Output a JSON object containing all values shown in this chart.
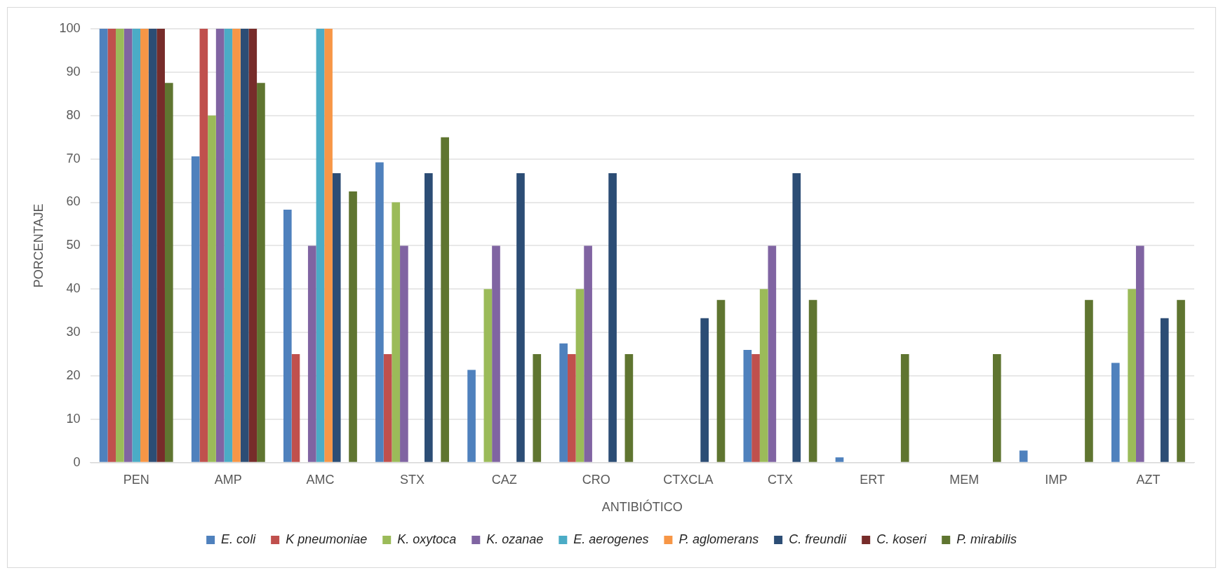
{
  "chart_data": {
    "type": "bar",
    "xlabel": "ANTIBIÓTICO",
    "ylabel": "PORCENTAJE",
    "categories": [
      "PEN",
      "AMP",
      "AMC",
      "STX",
      "CAZ",
      "CRO",
      "CTXCLA",
      "CTX",
      "ERT",
      "MEM",
      "IMP",
      "AZT"
    ],
    "series": [
      {
        "name": "E. coli",
        "color": "#4f81bd",
        "values": [
          100,
          70.6,
          58.3,
          69.2,
          21.4,
          27.5,
          null,
          26,
          1.2,
          null,
          2.8,
          23
        ]
      },
      {
        "name": "K pneumoniae",
        "color": "#c0504d",
        "values": [
          100,
          100,
          25,
          25,
          null,
          25,
          null,
          25,
          null,
          null,
          null,
          null
        ]
      },
      {
        "name": "K. oxytoca",
        "color": "#9bbb59",
        "values": [
          100,
          80,
          null,
          60,
          40,
          40,
          null,
          40,
          null,
          null,
          null,
          40
        ]
      },
      {
        "name": "K. ozanae",
        "color": "#8064a2",
        "values": [
          100,
          100,
          50,
          50,
          50,
          50,
          null,
          50,
          null,
          null,
          null,
          50
        ]
      },
      {
        "name": "E. aerogenes",
        "color": "#4bacc6",
        "values": [
          100,
          100,
          100,
          null,
          null,
          null,
          null,
          null,
          null,
          null,
          null,
          null
        ]
      },
      {
        "name": "P. aglomerans",
        "color": "#f79646",
        "values": [
          100,
          100,
          100,
          null,
          null,
          null,
          null,
          null,
          null,
          null,
          null,
          null
        ]
      },
      {
        "name": "C. freundii",
        "color": "#2c4d75",
        "values": [
          100,
          100,
          66.7,
          66.7,
          66.7,
          66.7,
          33.3,
          66.7,
          null,
          null,
          null,
          33.3
        ]
      },
      {
        "name": "C. koseri",
        "color": "#772c2a",
        "values": [
          100,
          100,
          null,
          null,
          null,
          null,
          null,
          null,
          null,
          null,
          null,
          null
        ]
      },
      {
        "name": "P. mirabilis",
        "color": "#5f7530",
        "values": [
          87.5,
          87.5,
          62.5,
          75,
          25,
          25,
          37.5,
          37.5,
          25,
          25,
          37.5,
          37.5
        ]
      }
    ],
    "ylim": [
      0,
      100
    ],
    "yticks": [
      0,
      10,
      20,
      30,
      40,
      50,
      60,
      70,
      80,
      90,
      100
    ],
    "grid": "y",
    "legend": "bottom"
  }
}
